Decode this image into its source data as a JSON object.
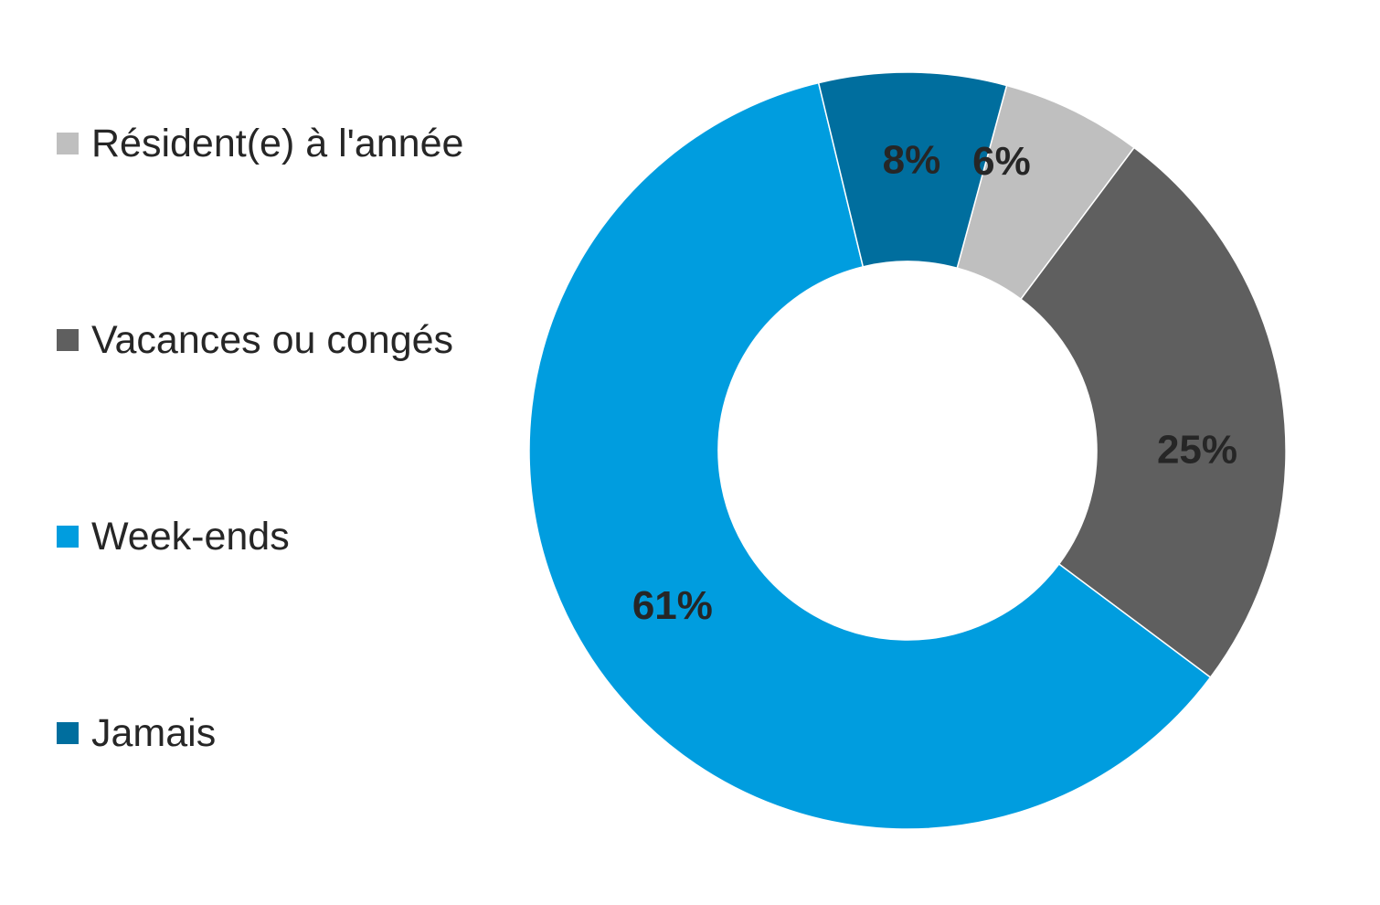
{
  "chart_data": {
    "type": "pie",
    "variant": "donut",
    "title": "",
    "categories": [
      "Résident(e) à l'année",
      "Vacances ou congés",
      "Week-ends",
      "Jamais"
    ],
    "values": [
      6,
      25,
      61,
      8
    ],
    "labels": [
      "6%",
      "25%",
      "61%",
      "8%"
    ],
    "colors": [
      "#BFBFBF",
      "#5F5F5F",
      "#009DDF",
      "#006E9E"
    ],
    "legend_position": "left",
    "start": "top-right, clockwise from Résident(e) à l'année"
  }
}
